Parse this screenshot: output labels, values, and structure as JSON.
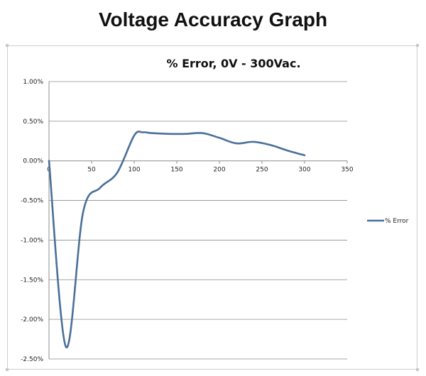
{
  "page": {
    "heading": "Voltage Accuracy Graph"
  },
  "chart_data": {
    "type": "line",
    "title": "% Error, 0V - 300Vac.",
    "xlabel": "",
    "ylabel": "",
    "xlim": [
      0,
      350
    ],
    "ylim": [
      -2.5,
      1.0
    ],
    "xticks": [
      0,
      50,
      100,
      150,
      200,
      250,
      300,
      350
    ],
    "yticks": [
      1.0,
      0.5,
      0.0,
      -0.5,
      -1.0,
      -1.5,
      -2.0,
      -2.5
    ],
    "ytick_labels": [
      "1.00%",
      "0.50%",
      "0.00%",
      "-0.50%",
      "-1.00%",
      "-1.50%",
      "-2.00%",
      "-2.50%"
    ],
    "grid": true,
    "legend_position": "right",
    "series": [
      {
        "name": "% Error",
        "color": "#4a6f9a",
        "x": [
          0,
          20,
          40,
          60,
          80,
          100,
          110,
          120,
          140,
          160,
          180,
          200,
          220,
          240,
          260,
          280,
          300
        ],
        "y": [
          0.0,
          -2.35,
          -0.65,
          -0.34,
          -0.15,
          0.32,
          0.36,
          0.35,
          0.34,
          0.34,
          0.35,
          0.29,
          0.22,
          0.24,
          0.2,
          0.13,
          0.07
        ]
      }
    ]
  }
}
